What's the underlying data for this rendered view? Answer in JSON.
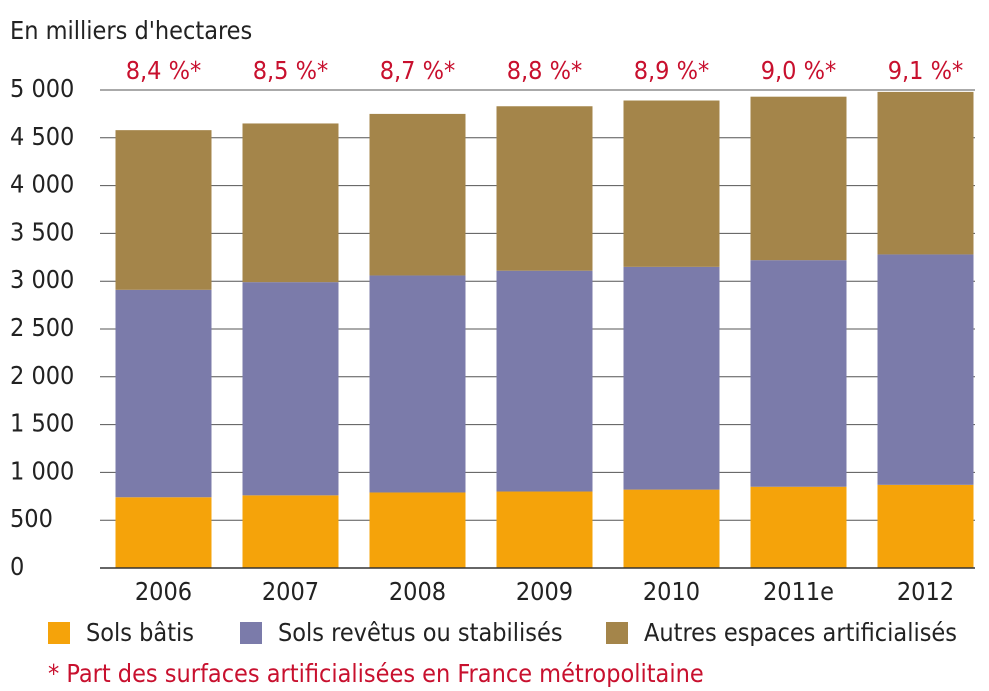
{
  "chart_data": {
    "type": "bar",
    "stacked": true,
    "y_label": "En milliers d'hectares",
    "categories": [
      "2006",
      "2007",
      "2008",
      "2009",
      "2010",
      "2011e",
      "2012"
    ],
    "series": [
      {
        "name": "Sols bâtis",
        "color": "#f5a30a",
        "values": [
          740,
          760,
          790,
          800,
          820,
          850,
          870
        ]
      },
      {
        "name": "Sols revêtus ou stabilisés",
        "color": "#7b7baa",
        "values": [
          2170,
          2230,
          2270,
          2310,
          2330,
          2370,
          2410
        ]
      },
      {
        "name": "Autres espaces artificialisés",
        "color": "#a4854a",
        "values": [
          1670,
          1660,
          1690,
          1720,
          1740,
          1710,
          1700
        ]
      }
    ],
    "share": {
      "values": [
        8.4,
        8.5,
        8.7,
        8.8,
        8.9,
        9.0,
        9.1
      ],
      "value_labels": [
        "8,4 %*",
        "8,5 %*",
        "8,7 %*",
        "8,8 %*",
        "8,9 %*",
        "9,0 %*",
        "9,1 %*"
      ],
      "color": "#c8102e"
    },
    "footnote": "* Part des surfaces artificialisées en France métropolitaine",
    "ylim": [
      0,
      5000
    ],
    "yticks": [
      0,
      500,
      {
        "value": 1000,
        "label": "1 000"
      },
      {
        "value": 1500,
        "label": "1 500"
      },
      {
        "value": 2000,
        "label": "2 000"
      },
      {
        "value": 2500,
        "label": "2 500"
      },
      {
        "value": 3000,
        "label": "3 000"
      },
      {
        "value": 3500,
        "label": "3 500"
      },
      {
        "value": 4000,
        "label": "4 000"
      },
      {
        "value": 4500,
        "label": "4 500"
      },
      {
        "value": 5000,
        "label": "5 000"
      }
    ],
    "grid": true
  }
}
